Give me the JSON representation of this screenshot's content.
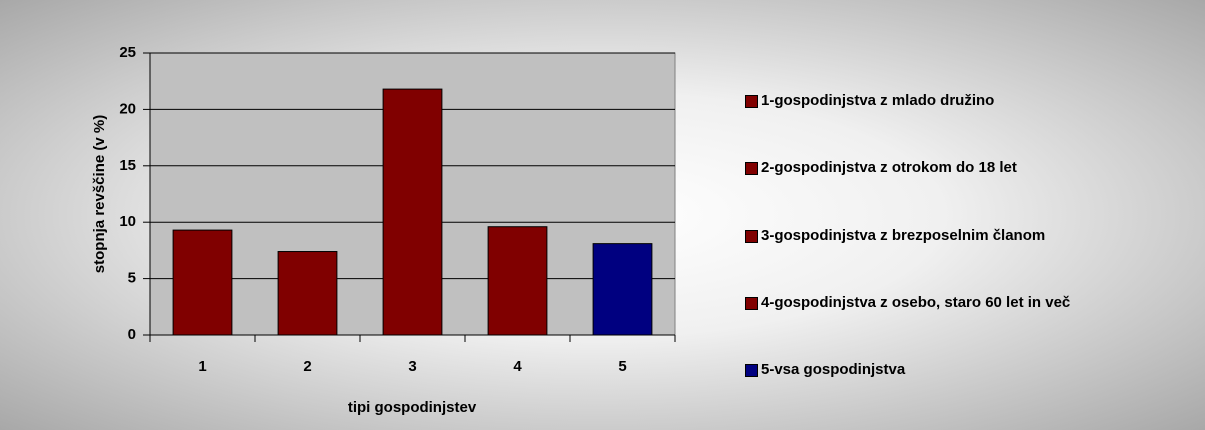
{
  "chart_data": {
    "type": "bar",
    "categories": [
      "1",
      "2",
      "3",
      "4",
      "5"
    ],
    "values": [
      9.3,
      7.4,
      21.8,
      9.6,
      8.1
    ],
    "colors": [
      "#800000",
      "#800000",
      "#800000",
      "#800000",
      "#000080"
    ],
    "legend": [
      "1-gospodinjstva z mlado družino",
      "2-gospodinjstva z otrokom do 18 let",
      "3-gospodinjstva z brezposelnim članom",
      "4-gospodinjstva z osebo, staro 60 let in več",
      "5-vsa gospodinjstva"
    ],
    "xlabel": "tipi gospodinjstev",
    "ylabel": "stopnja revščine (v %)",
    "ylim": [
      0,
      25
    ],
    "yticks": [
      0,
      5,
      10,
      15,
      20,
      25
    ],
    "grid": true
  }
}
